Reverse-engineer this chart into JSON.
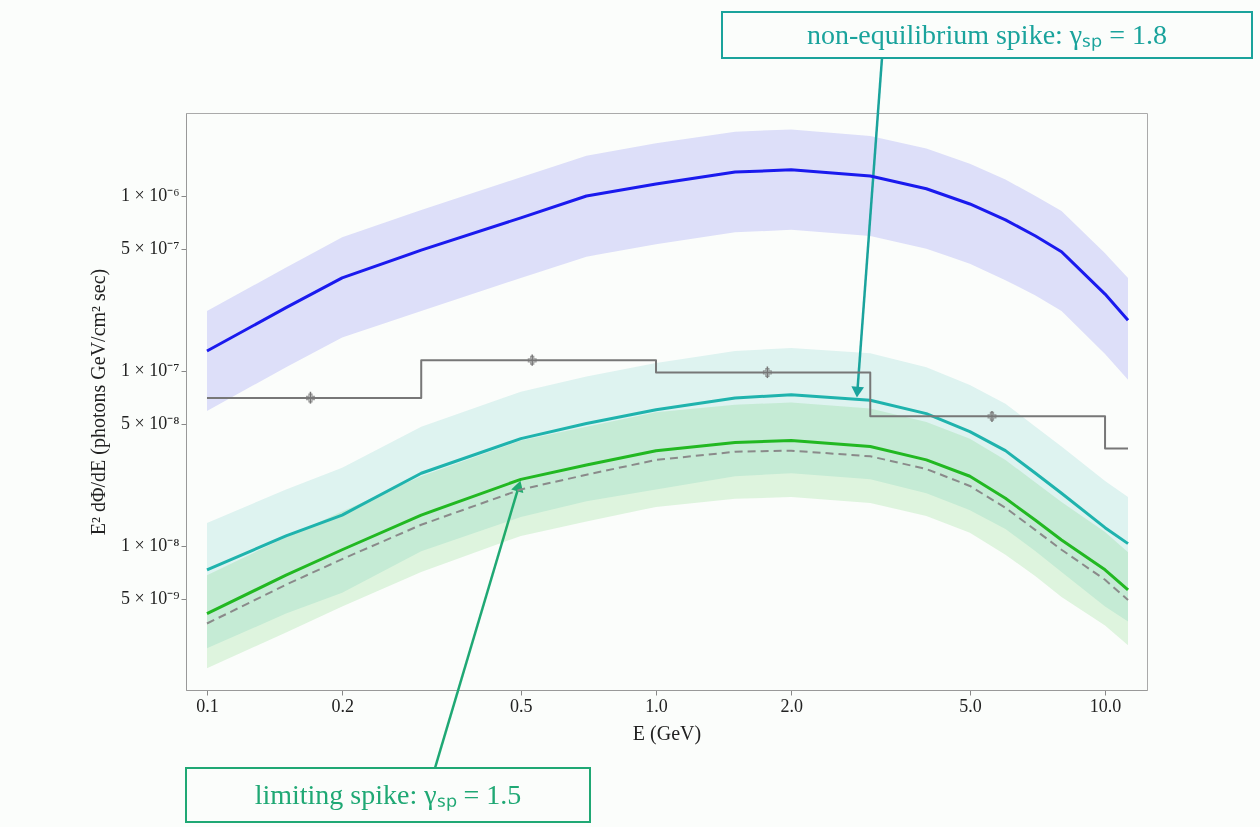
{
  "chart_data": {
    "type": "line",
    "xlabel": "E (GeV)",
    "ylabel": "E² dΦ/dE (photons GeV/cm² sec)",
    "log": "xy",
    "grid": false,
    "xlim": [
      0.0898,
      12.4
    ],
    "ylim": [
      1.5e-09,
      2.98e-06
    ],
    "xticks": [
      0.1,
      0.2,
      0.5,
      {
        "value": 1,
        "label": "1.0"
      },
      {
        "value": 2,
        "label": "2.0"
      },
      {
        "value": 5,
        "label": "5.0"
      },
      {
        "value": 10,
        "label": "10.0"
      }
    ],
    "yticks": [
      {
        "value": 1e-06,
        "label": "1 × 10⁻⁶"
      },
      {
        "value": 5e-07,
        "label": "5 × 10⁻⁷"
      },
      {
        "value": 1e-07,
        "label": "1 × 10⁻⁷"
      },
      {
        "value": 5e-08,
        "label": "5 × 10⁻⁸"
      },
      {
        "value": 1e-08,
        "label": "1 × 10⁻⁸"
      },
      {
        "value": 5e-09,
        "label": "5 × 10⁻⁹"
      }
    ],
    "x": [
      0.1,
      0.15,
      0.2,
      0.3,
      0.5,
      0.7,
      1,
      1.5,
      2,
      3,
      4,
      5,
      6,
      7,
      8,
      10,
      11.25
    ],
    "series": [
      {
        "type": "line",
        "color": "#1a1aee",
        "line_style": "solid",
        "values": [
          1.3e-07,
          2.3e-07,
          3.4e-07,
          4.9e-07,
          7.5e-07,
          1e-06,
          1.17e-06,
          1.37e-06,
          1.41e-06,
          1.3e-06,
          1.1e-06,
          9e-07,
          7.3e-07,
          5.9e-07,
          4.8e-07,
          2.75e-07,
          1.95e-07
        ],
        "upper": [
          2.2e-07,
          3.9e-07,
          5.8e-07,
          8.3e-07,
          1.28e-06,
          1.7e-06,
          2e-06,
          2.33e-06,
          2.4e-06,
          2.2e-06,
          1.87e-06,
          1.53e-06,
          1.24e-06,
          1e-06,
          8.2e-07,
          4.7e-07,
          3.4e-07
        ],
        "lower": [
          5.9e-08,
          1.05e-07,
          1.55e-07,
          2.2e-07,
          3.4e-07,
          4.5e-07,
          5.3e-07,
          6.2e-07,
          6.4e-07,
          5.9e-07,
          5e-07,
          4.1e-07,
          3.3e-07,
          2.7e-07,
          2.2e-07,
          1.25e-07,
          8.9e-08
        ]
      },
      {
        "type": "line",
        "color": "#1fb3ad",
        "line_style": "solid",
        "values": [
          7.3e-09,
          1.14e-08,
          1.5e-08,
          2.6e-08,
          4.1e-08,
          5e-08,
          6e-08,
          7e-08,
          7.3e-08,
          6.8e-08,
          5.7e-08,
          4.5e-08,
          3.5e-08,
          2.6e-08,
          2e-08,
          1.27e-08,
          1.03e-08
        ],
        "upper": [
          1.35e-08,
          2.1e-08,
          2.8e-08,
          4.8e-08,
          7.6e-08,
          9.3e-08,
          1.11e-07,
          1.3e-07,
          1.35e-07,
          1.26e-07,
          1.05e-07,
          8.3e-08,
          6.5e-08,
          4.8e-08,
          3.7e-08,
          2.35e-08,
          1.9e-08
        ],
        "lower": [
          2.6e-09,
          4.1e-09,
          5.4e-09,
          9.3e-09,
          1.46e-08,
          1.8e-08,
          2.1e-08,
          2.5e-08,
          2.6e-08,
          2.4e-08,
          2e-08,
          1.6e-08,
          1.25e-08,
          9.3e-09,
          7.1e-09,
          4.5e-09,
          3.7e-09
        ]
      },
      {
        "type": "line",
        "color": "#22b822",
        "line_style": "solid",
        "values": [
          4.1e-09,
          6.8e-09,
          9.5e-09,
          1.5e-08,
          2.4e-08,
          2.9e-08,
          3.5e-08,
          3.9e-08,
          4e-08,
          3.7e-08,
          3.1e-08,
          2.5e-08,
          1.87e-08,
          1.4e-08,
          1.08e-08,
          7.3e-09,
          5.6e-09
        ],
        "upper": [
          6.8e-09,
          1.12e-08,
          1.57e-08,
          2.5e-08,
          4e-08,
          4.8e-08,
          5.8e-08,
          6.4e-08,
          6.6e-08,
          6.1e-08,
          5.1e-08,
          4.1e-08,
          3.1e-08,
          2.3e-08,
          1.78e-08,
          1.2e-08,
          9.2e-09
        ],
        "lower": [
          2e-09,
          3.2e-09,
          4.5e-09,
          7.1e-09,
          1.14e-08,
          1.38e-08,
          1.67e-08,
          1.86e-08,
          1.9e-08,
          1.76e-08,
          1.48e-08,
          1.19e-08,
          8.9e-09,
          6.7e-09,
          5.1e-09,
          3.5e-09,
          2.7e-09
        ]
      },
      {
        "type": "line",
        "color": "#8a8a8a",
        "line_style": "dashed",
        "values": [
          3.6e-09,
          6e-09,
          8.4e-09,
          1.32e-08,
          2.1e-08,
          2.55e-08,
          3.1e-08,
          3.45e-08,
          3.5e-08,
          3.25e-08,
          2.75e-08,
          2.2e-08,
          1.65e-08,
          1.23e-08,
          9.5e-09,
          6.4e-09,
          4.9e-09
        ]
      },
      {
        "type": "step",
        "color": "#777777",
        "line_style": "solid",
        "x": [
          0.1,
          0.3,
          1,
          3,
          10,
          11.25
        ],
        "values": [
          7e-08,
          1.15e-07,
          9.8e-08,
          5.5e-08,
          3.6e-08,
          3.6e-08
        ]
      },
      {
        "type": "scatter",
        "color": "#777777",
        "marker": "cross",
        "x": [
          0.17,
          0.53,
          1.77,
          5.6
        ],
        "values": [
          7e-08,
          1.15e-07,
          9.8e-08,
          5.5e-08
        ],
        "errors": [
          [
            6.5e-08,
            7.6e-08
          ],
          [
            1.07e-07,
            1.24e-07
          ],
          [
            9.1e-08,
            1.06e-07
          ],
          [
            5.1e-08,
            5.9e-08
          ]
        ]
      }
    ],
    "annotations": [
      {
        "text": "non-equilibrium spike: γₛₚ = 1.8",
        "x": 2.8,
        "y": 6.9e-08
      },
      {
        "text": "limiting spike: γₛₚ = 1.5",
        "x": 0.5,
        "y": 2.4e-08
      }
    ]
  }
}
